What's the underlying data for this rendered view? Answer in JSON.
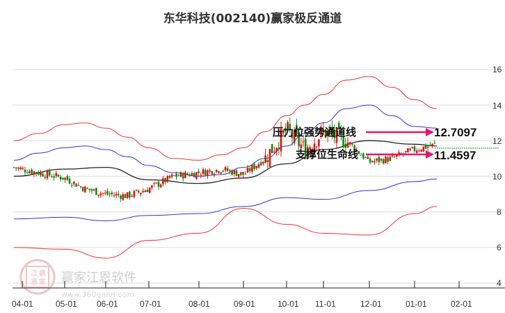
{
  "title": "东华科技(002140)赢家极反通道",
  "chart_data": {
    "type": "line",
    "title": "东华科技(002140)赢家极反通道",
    "subtype": "candlestick with channel bands",
    "xlabel": "",
    "ylabel": "",
    "ylim": [
      4,
      16.5
    ],
    "y_ticks": [
      16,
      14,
      12,
      10,
      8,
      6,
      4
    ],
    "x_ticks": [
      "04-01",
      "05-01",
      "06-01",
      "07-01",
      "08-01",
      "09-01",
      "10-01",
      "11-01",
      "12-01",
      "01-01",
      "02-01"
    ],
    "grid": true,
    "legend": "none",
    "annotations": [
      {
        "label": "压力位强势通道线",
        "value": "12.7097",
        "color": "#e0186c"
      },
      {
        "label": "支撑位生命线",
        "value": "11.4597",
        "color": "#e0186c"
      }
    ],
    "reference_line": {
      "value": 11.85,
      "style": "dashed",
      "color": "#1a8a1a"
    },
    "series": [
      {
        "name": "outer-upper",
        "color": "#ee3333",
        "x": [
          "04-01",
          "04-15",
          "05-01",
          "05-15",
          "06-01",
          "06-15",
          "07-01",
          "07-15",
          "08-01",
          "08-15",
          "09-01",
          "09-15",
          "10-01",
          "10-15",
          "11-01",
          "11-15",
          "12-01",
          "12-15",
          "01-01",
          "01-15"
        ],
        "values": [
          12.0,
          12.4,
          12.9,
          13.0,
          12.7,
          12.2,
          11.6,
          11.0,
          10.9,
          11.2,
          11.6,
          12.5,
          13.4,
          14.0,
          14.6,
          15.4,
          15.6,
          15.0,
          14.3,
          13.8
        ]
      },
      {
        "name": "inner-upper",
        "color": "#3333dd",
        "x": [
          "04-01",
          "04-15",
          "05-01",
          "05-15",
          "06-01",
          "06-15",
          "07-01",
          "07-15",
          "08-01",
          "08-15",
          "09-01",
          "09-15",
          "10-01",
          "10-15",
          "11-01",
          "11-15",
          "12-01",
          "12-15",
          "01-01",
          "01-15"
        ],
        "values": [
          10.9,
          11.3,
          11.6,
          11.7,
          11.5,
          11.1,
          10.6,
          10.2,
          10.0,
          10.1,
          10.5,
          11.0,
          11.7,
          12.4,
          13.0,
          13.8,
          14.0,
          13.4,
          12.8,
          12.7
        ]
      },
      {
        "name": "middle",
        "color": "#222222",
        "x": [
          "04-01",
          "05-01",
          "06-01",
          "07-01",
          "08-01",
          "09-01",
          "10-01",
          "11-01",
          "12-01",
          "01-01",
          "01-15"
        ],
        "values": [
          10.0,
          10.4,
          10.5,
          9.8,
          9.6,
          9.9,
          10.7,
          11.5,
          12.0,
          11.8,
          11.7
        ]
      },
      {
        "name": "inner-lower",
        "color": "#3333dd",
        "x": [
          "04-01",
          "05-01",
          "06-01",
          "07-01",
          "08-01",
          "09-01",
          "10-01",
          "11-01",
          "12-01",
          "01-01",
          "01-15"
        ],
        "values": [
          7.6,
          7.7,
          7.5,
          7.8,
          7.9,
          8.3,
          8.8,
          8.7,
          9.2,
          9.7,
          9.85
        ]
      },
      {
        "name": "outer-lower",
        "color": "#ee3333",
        "x": [
          "04-01",
          "05-01",
          "06-01",
          "07-01",
          "08-01",
          "09-01",
          "10-01",
          "11-01",
          "12-01",
          "01-01",
          "01-15"
        ],
        "values": [
          6.0,
          5.9,
          5.4,
          6.4,
          6.8,
          8.2,
          7.3,
          6.8,
          6.7,
          7.9,
          8.3
        ]
      },
      {
        "name": "price-close",
        "color": "#e81010",
        "x": [
          "04-01",
          "04-15",
          "05-01",
          "05-15",
          "06-01",
          "06-15",
          "07-01",
          "07-15",
          "08-01",
          "08-15",
          "09-01",
          "09-15",
          "10-01",
          "10-15",
          "11-01",
          "11-15",
          "12-01",
          "12-15",
          "01-01",
          "01-15"
        ],
        "values": [
          10.5,
          10.2,
          9.9,
          9.3,
          9.0,
          8.9,
          9.3,
          10.0,
          10.2,
          10.4,
          10.1,
          11.0,
          12.6,
          11.5,
          12.5,
          12.0,
          10.8,
          11.0,
          11.5,
          11.8
        ]
      }
    ]
  },
  "axis": {
    "y_labels": [
      "16",
      "14",
      "12",
      "10",
      "8",
      "6",
      "4"
    ],
    "x_labels": [
      "04-01",
      "05-01",
      "06-01",
      "07-01",
      "08-01",
      "09-01",
      "10-01",
      "11-01",
      "12-01",
      "01-01",
      "02-01"
    ]
  },
  "annotations": {
    "pressure_label": "压力位强势通道线",
    "pressure_value": "12.7097",
    "support_label": "支撑位生命线",
    "support_value": "11.4597"
  },
  "watermark": {
    "brand": "赢家江恩软件",
    "url": "www.360gann.com",
    "seal": [
      "江",
      "赢",
      "恩",
      "家"
    ]
  },
  "colors": {
    "up": "#e81010",
    "down": "#128a12",
    "outer_band": "#ee3333",
    "inner_band": "#3333dd",
    "middle": "#222222",
    "arrow": "#e0186c",
    "grid": "#dddddd"
  }
}
